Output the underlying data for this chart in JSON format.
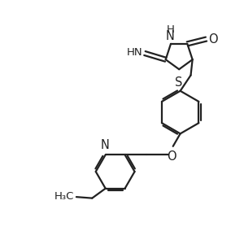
{
  "bg": "#ffffff",
  "lc": "#222222",
  "lw": 1.6,
  "fs": 9.5,
  "figsize": [
    3.0,
    3.0
  ],
  "dpi": 100,
  "xlim": [
    0,
    10
  ],
  "ylim": [
    0,
    10
  ]
}
